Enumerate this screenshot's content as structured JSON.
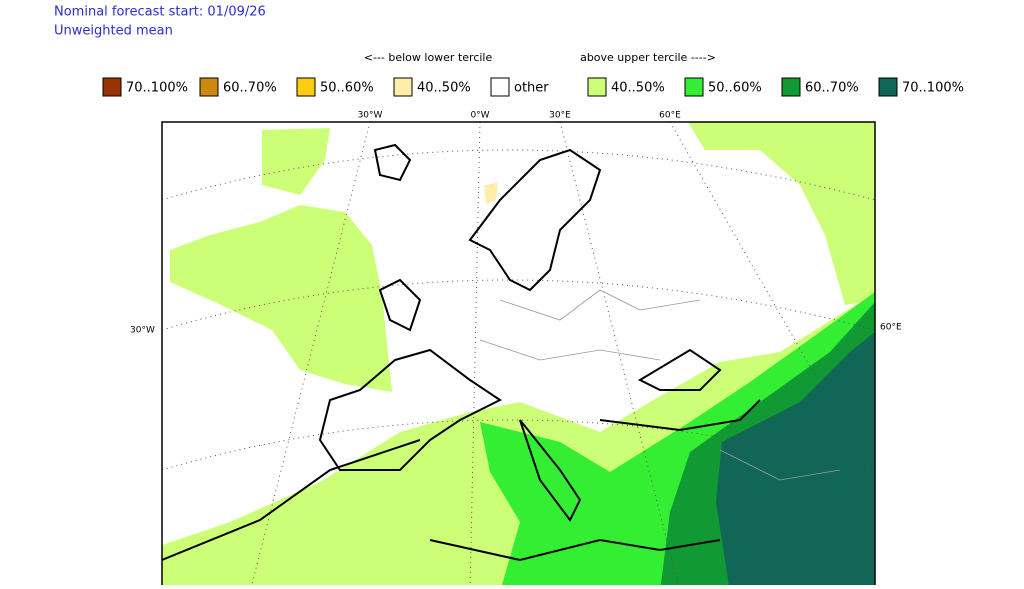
{
  "header": {
    "forecast_start": "Nominal forecast start: 01/09/26",
    "mean_type": "Unweighted mean"
  },
  "legend": {
    "below_label": "<--- below lower tercile",
    "above_label": "above upper tercile ---->",
    "items": [
      {
        "label": "70..100%",
        "color": "#993300"
      },
      {
        "label": "60..70%",
        "color": "#cc8811"
      },
      {
        "label": "50..60%",
        "color": "#ffcc11"
      },
      {
        "label": "40..50%",
        "color": "#ffeeaa"
      },
      {
        "label": "other",
        "color": "#ffffff"
      },
      {
        "label": "40..50%",
        "color": "#ccff77"
      },
      {
        "label": "50..60%",
        "color": "#33ee33"
      },
      {
        "label": "60..70%",
        "color": "#119933"
      },
      {
        "label": "70..100%",
        "color": "#116655"
      }
    ]
  },
  "map": {
    "top_labels": [
      "30°W",
      "0°W",
      "30°E",
      "60°E"
    ],
    "left_label": "30°W",
    "right_label": "60°E"
  }
}
